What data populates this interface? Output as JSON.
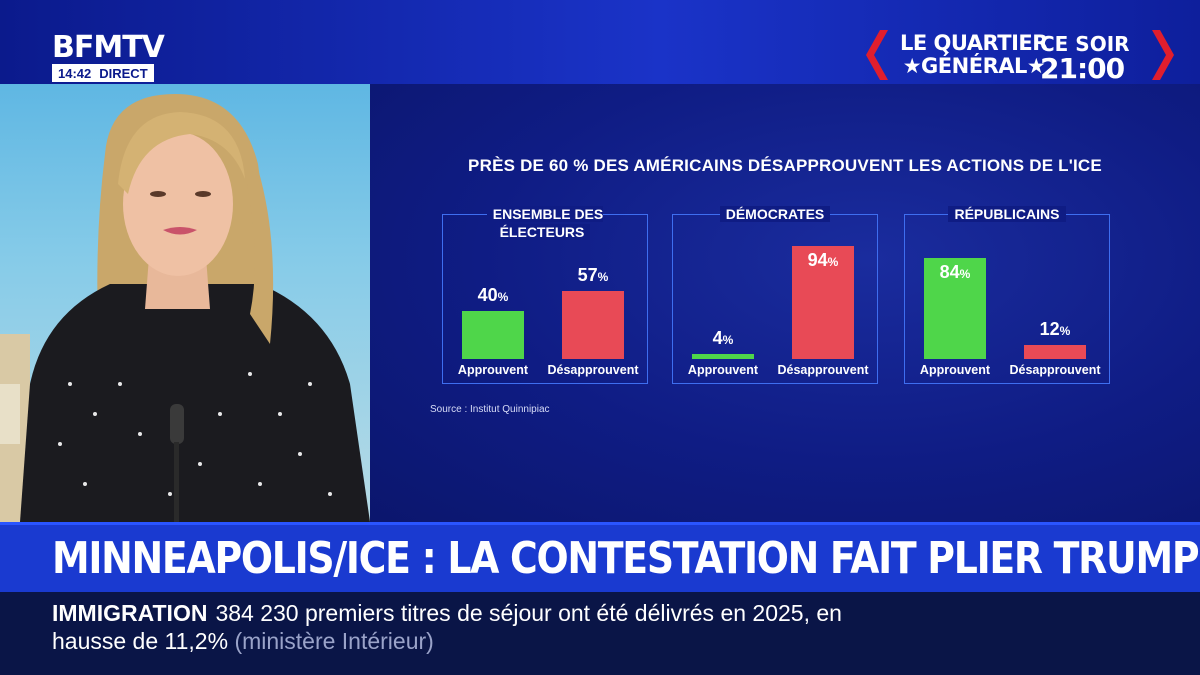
{
  "channel": {
    "logo": "BFMTV",
    "time": "14:42",
    "live": "DIRECT"
  },
  "promo": {
    "show_line1": "LE QUARTIER",
    "show_line2": "★GÉNÉRAL★",
    "when": "CE SOIR",
    "time": "21:00"
  },
  "chart_data": {
    "type": "bar",
    "title": "PRÈS DE 60 % DES AMÉRICAINS DÉSAPPROUVENT LES ACTIONS DE L'ICE",
    "source": "Source : Institut Quinnipiac",
    "unit": "%",
    "categories": [
      "Approuvent",
      "Désapprouvent"
    ],
    "groups": [
      {
        "name": "ENSEMBLE DES ÉLECTEURS",
        "values": [
          40,
          57
        ]
      },
      {
        "name": "DÉMOCRATES",
        "values": [
          4,
          94
        ]
      },
      {
        "name": "RÉPUBLICAINS",
        "values": [
          84,
          12
        ]
      }
    ],
    "colors": {
      "approve": "#4fd64a",
      "disapprove": "#e84a56"
    },
    "ylim": [
      0,
      100
    ]
  },
  "headline": "MINNEAPOLIS/ICE : LA CONTESTATION FAIT PLIER TRUMP",
  "ticker": {
    "keyword": "IMMIGRATION",
    "text1": "384 230 premiers titres de séjour ont été délivrés en 2025, en",
    "text2": "hausse de 11,2%",
    "text3": "(ministère Intérieur)"
  }
}
